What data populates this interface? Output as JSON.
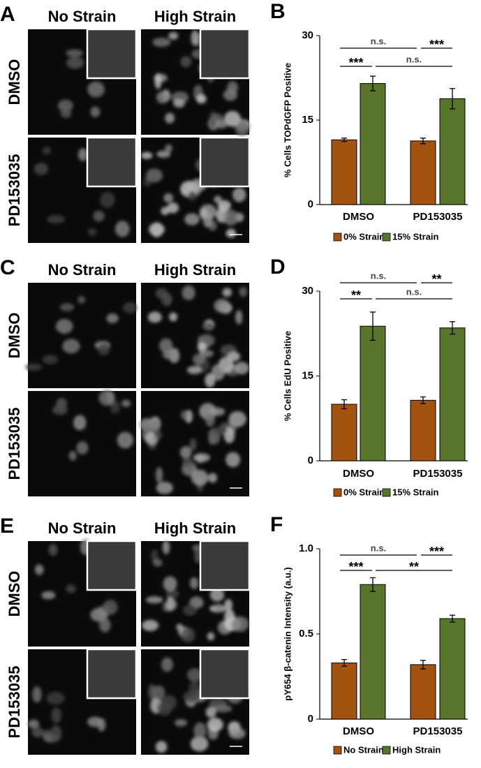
{
  "panels": [
    {
      "panel_label": "A",
      "columns": [
        "No Strain",
        "High Strain"
      ],
      "rows": [
        "DMSO",
        "PD153035"
      ]
    },
    {
      "panel_label": "C",
      "columns": [
        "No Strain",
        "High Strain"
      ],
      "rows": [
        "DMSO",
        "PD153035"
      ]
    },
    {
      "panel_label": "E",
      "columns": [
        "No Strain",
        "High Strain"
      ],
      "rows": [
        "DMSO",
        "PD153035"
      ]
    }
  ],
  "chart_data": [
    {
      "type": "bar",
      "panel_label": "B",
      "y_label": "% Cells TOPdGFP Positive",
      "categories": [
        "DMSO",
        "PD153035"
      ],
      "series": [
        {
          "name": "0% Strain",
          "color": "#a4520f",
          "values": [
            11.5,
            11.3
          ],
          "errors": [
            0.3,
            0.5
          ]
        },
        {
          "name": "15% Strain",
          "color": "#58752b",
          "values": [
            21.5,
            18.8
          ],
          "errors": [
            1.3,
            1.8
          ]
        }
      ],
      "ylim": [
        0,
        30
      ],
      "yticks": [
        0,
        15,
        30
      ],
      "annotations": [
        "n.s.",
        "***",
        "***",
        "n.s."
      ]
    },
    {
      "type": "bar",
      "panel_label": "D",
      "y_label": "% Cells EdU Positive",
      "categories": [
        "DMSO",
        "PD153035"
      ],
      "series": [
        {
          "name": "0% Strain",
          "color": "#a4520f",
          "values": [
            10.0,
            10.7
          ],
          "errors": [
            0.8,
            0.6
          ]
        },
        {
          "name": "15% Strain",
          "color": "#58752b",
          "values": [
            23.8,
            23.5
          ],
          "errors": [
            2.5,
            1.1
          ]
        }
      ],
      "ylim": [
        0,
        30
      ],
      "yticks": [
        0,
        15,
        30
      ],
      "annotations": [
        "n.s.",
        "**",
        "**",
        "n.s."
      ]
    },
    {
      "type": "bar",
      "panel_label": "F",
      "y_label": "pY654 β-catenin Intensity (a.u.)",
      "categories": [
        "DMSO",
        "PD153035"
      ],
      "series": [
        {
          "name": "No Strain",
          "color": "#a4520f",
          "values": [
            0.33,
            0.32
          ],
          "errors": [
            0.02,
            0.025
          ]
        },
        {
          "name": "High Strain",
          "color": "#58752b",
          "values": [
            0.79,
            0.59
          ],
          "errors": [
            0.04,
            0.02
          ]
        }
      ],
      "ylim": [
        0,
        1
      ],
      "yticks": [
        0,
        0.5,
        {
          "value": 1,
          "label": "1.0"
        }
      ],
      "annotations": [
        "n.s.",
        "***",
        "***",
        "**"
      ]
    }
  ]
}
